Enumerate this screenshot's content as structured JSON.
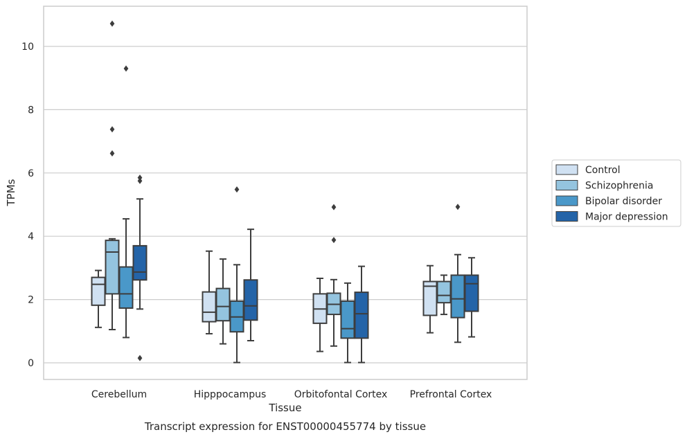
{
  "chart_data": {
    "type": "box",
    "xlabel": "Tissue",
    "ylabel": "TPMs",
    "caption": "Transcript expression for ENST00000455774 by tissue",
    "ylim": [
      -0.5,
      11.3
    ],
    "yticks": [
      0,
      2,
      4,
      6,
      8,
      10
    ],
    "grid": true,
    "legend_position": "right",
    "categories": [
      "Cerebellum",
      "Hipppocampus",
      "Orbitofontal Cortex",
      "Prefrontal Cortex"
    ],
    "series": [
      {
        "name": "Control",
        "color": "#d0e1f2",
        "boxes": [
          {
            "whislo": 1.12,
            "q1": 1.82,
            "med": 2.48,
            "q3": 2.7,
            "whishi": 2.92,
            "fliers": []
          },
          {
            "whislo": 0.92,
            "q1": 1.3,
            "med": 1.6,
            "q3": 2.24,
            "whishi": 3.53,
            "fliers": []
          },
          {
            "whislo": 0.36,
            "q1": 1.25,
            "med": 1.7,
            "q3": 2.18,
            "whishi": 2.67,
            "fliers": []
          },
          {
            "whislo": 0.95,
            "q1": 1.5,
            "med": 2.42,
            "q3": 2.57,
            "whishi": 3.07,
            "fliers": []
          }
        ]
      },
      {
        "name": "Schizophrenia",
        "color": "#94c4df",
        "boxes": [
          {
            "whislo": 1.05,
            "q1": 2.18,
            "med": 3.5,
            "q3": 3.87,
            "whishi": 3.92,
            "fliers": [
              10.72,
              7.38,
              6.62
            ]
          },
          {
            "whislo": 0.6,
            "q1": 1.33,
            "med": 1.78,
            "q3": 2.35,
            "whishi": 3.28,
            "fliers": []
          },
          {
            "whislo": 0.53,
            "q1": 1.53,
            "med": 1.85,
            "q3": 2.2,
            "whishi": 2.63,
            "fliers": [
              4.92,
              3.88
            ]
          },
          {
            "whislo": 1.53,
            "q1": 1.9,
            "med": 2.13,
            "q3": 2.57,
            "whishi": 2.77,
            "fliers": []
          }
        ]
      },
      {
        "name": "Bipolar disorder",
        "color": "#4a98c9",
        "boxes": [
          {
            "whislo": 0.8,
            "q1": 1.73,
            "med": 2.18,
            "q3": 3.03,
            "whishi": 4.55,
            "fliers": [
              9.3
            ]
          },
          {
            "whislo": 0.01,
            "q1": 0.98,
            "med": 1.45,
            "q3": 1.95,
            "whishi": 3.1,
            "fliers": [
              5.48
            ]
          },
          {
            "whislo": 0.01,
            "q1": 0.78,
            "med": 1.08,
            "q3": 1.95,
            "whishi": 2.52,
            "fliers": []
          },
          {
            "whislo": 0.65,
            "q1": 1.43,
            "med": 2.02,
            "q3": 2.77,
            "whishi": 3.42,
            "fliers": [
              4.93
            ]
          }
        ]
      },
      {
        "name": "Major depression",
        "color": "#2464a8",
        "boxes": [
          {
            "whislo": 1.7,
            "q1": 2.62,
            "med": 2.87,
            "q3": 3.7,
            "whishi": 5.18,
            "fliers": [
              5.85,
              5.75,
              0.15
            ]
          },
          {
            "whislo": 0.7,
            "q1": 1.35,
            "med": 1.8,
            "q3": 2.62,
            "whishi": 4.22,
            "fliers": []
          },
          {
            "whislo": 0.01,
            "q1": 0.78,
            "med": 1.55,
            "q3": 2.23,
            "whishi": 3.05,
            "fliers": []
          },
          {
            "whislo": 0.82,
            "q1": 1.63,
            "med": 2.5,
            "q3": 2.77,
            "whishi": 3.32,
            "fliers": []
          }
        ]
      }
    ]
  }
}
